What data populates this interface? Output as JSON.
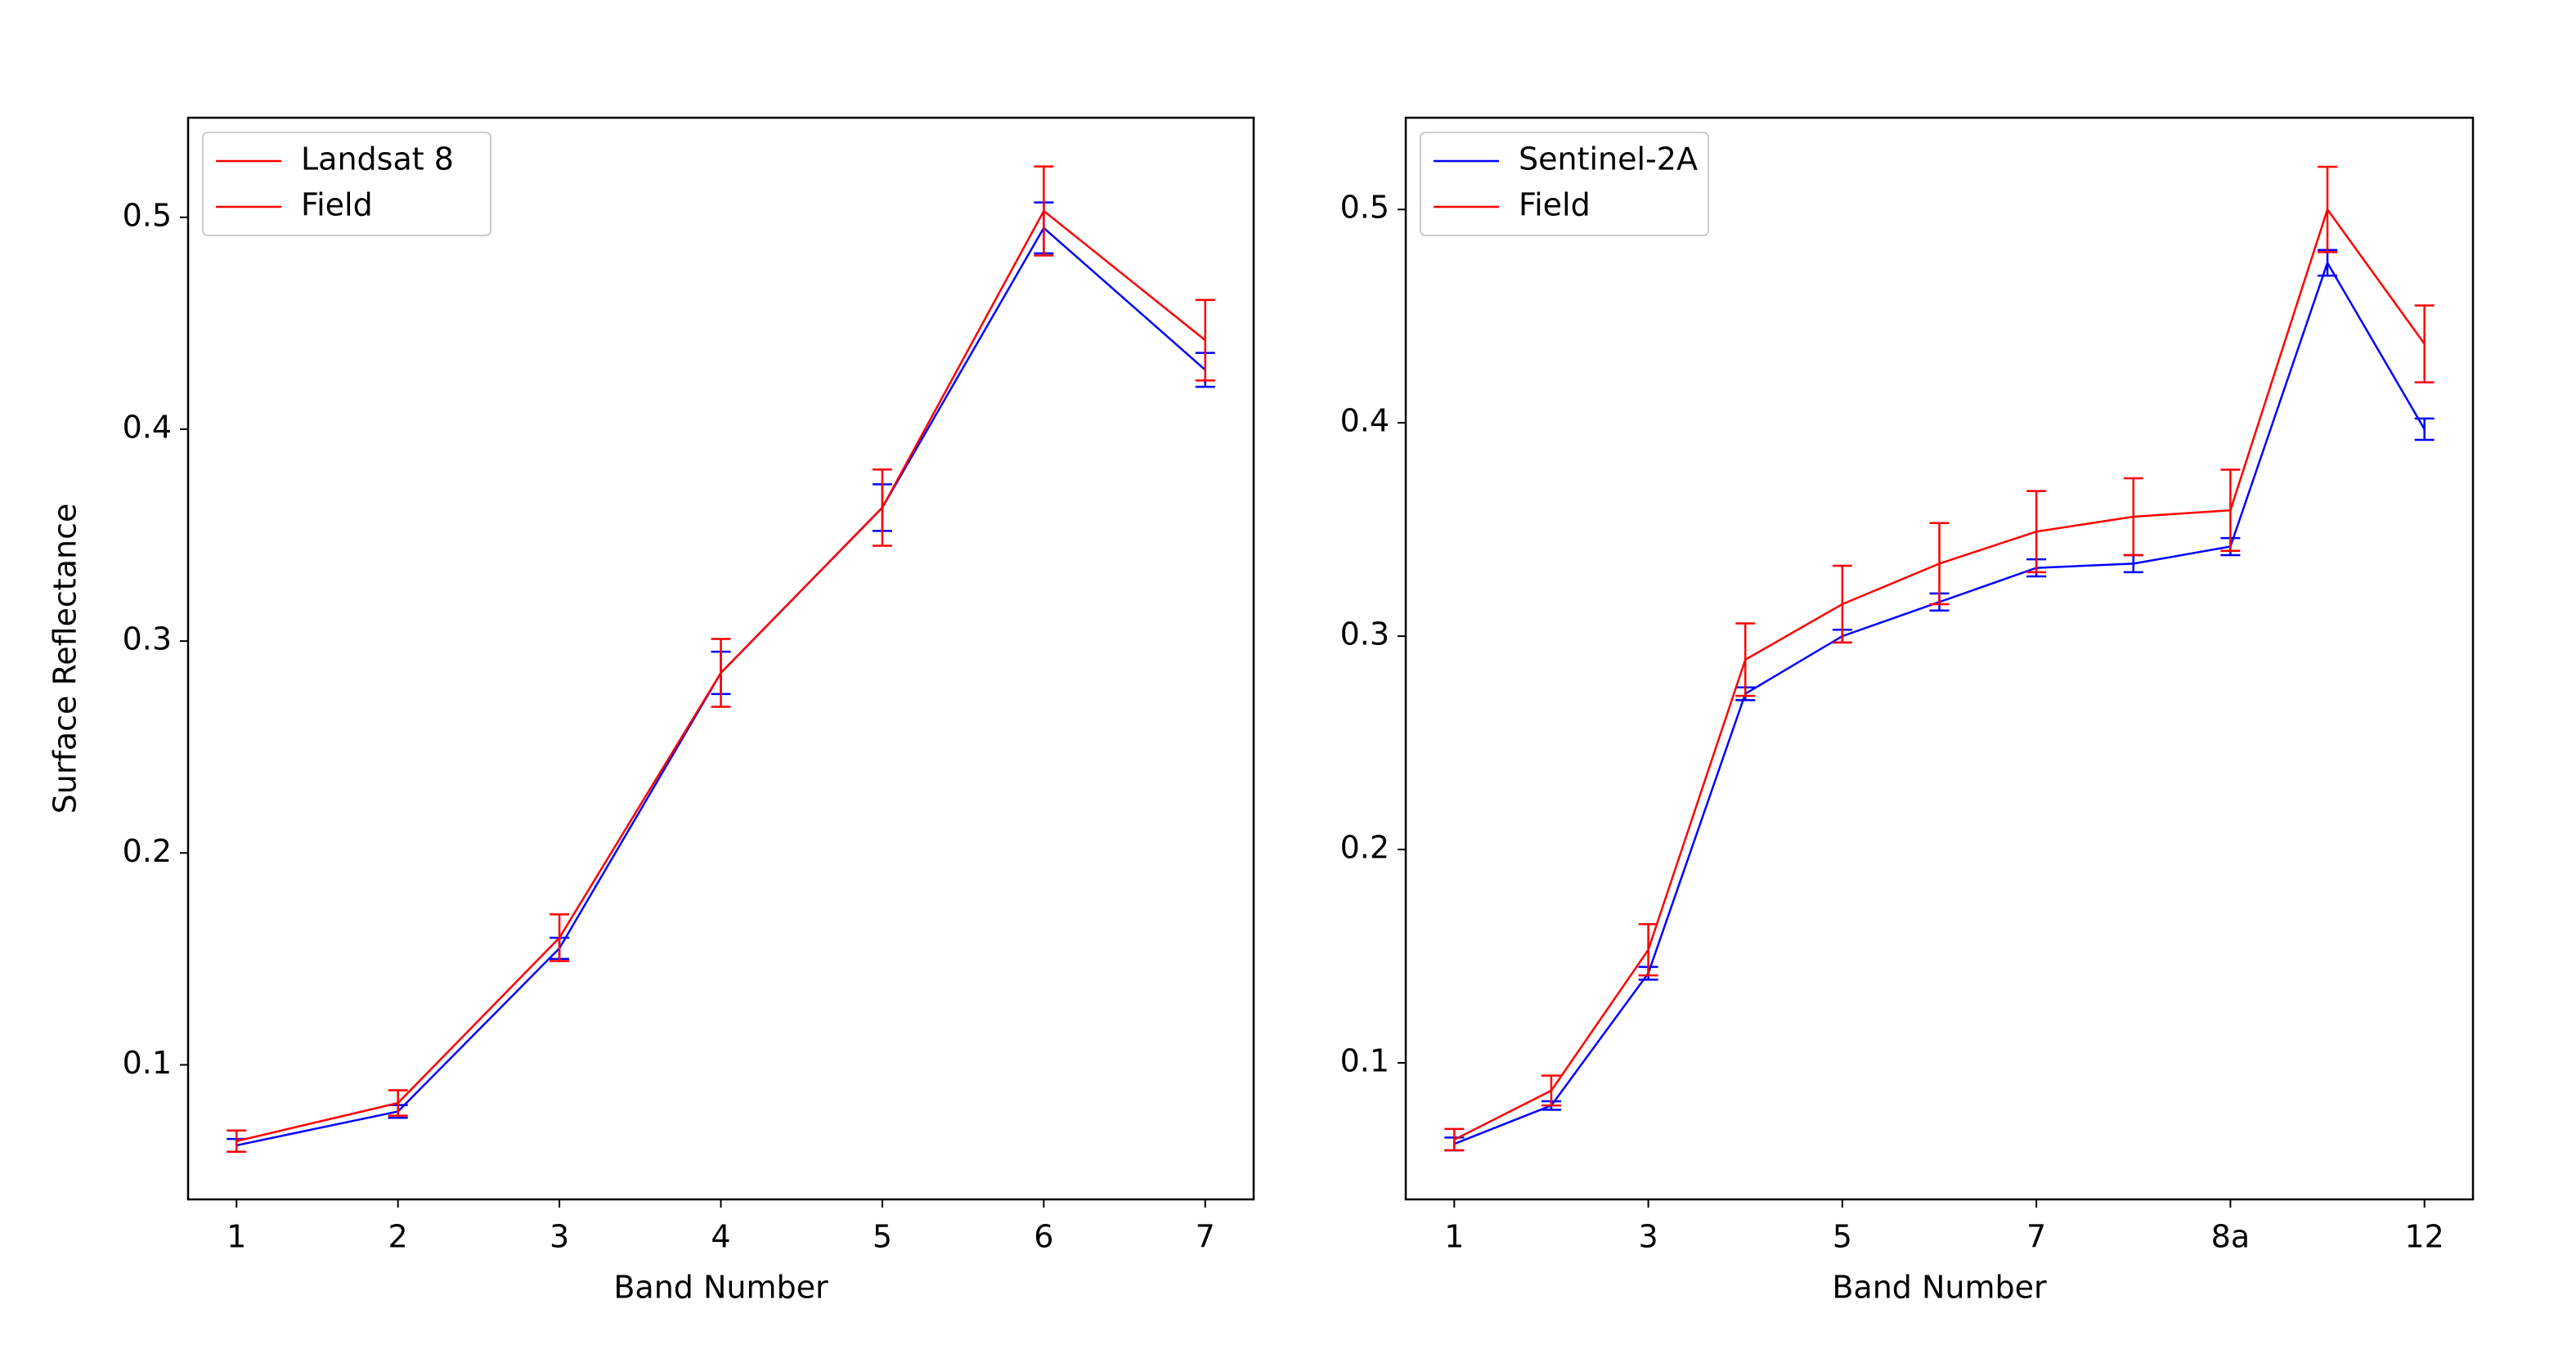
{
  "chart_data": [
    {
      "type": "line",
      "xlabel": "Band Number",
      "ylabel": "Surface Reflectance",
      "x": [
        1,
        2,
        3,
        4,
        5,
        6,
        7
      ],
      "xlim": [
        0.7,
        7.3
      ],
      "xticks": [
        1,
        2,
        3,
        4,
        5,
        6,
        7
      ],
      "ylim": [
        0.0365,
        0.547
      ],
      "yticks": [
        0.1,
        0.2,
        0.3,
        0.4,
        0.5
      ],
      "legend": "upper left",
      "series": [
        {
          "name": "Landsat 8",
          "color": "#0000ff",
          "legend_color": "#ff0000",
          "values": [
            0.062,
            0.078,
            0.155,
            0.285,
            0.363,
            0.495,
            0.428
          ],
          "errors": [
            0.003,
            0.003,
            0.005,
            0.01,
            0.011,
            0.012,
            0.008
          ]
        },
        {
          "name": "Field",
          "color": "#ff0000",
          "values": [
            0.064,
            0.082,
            0.16,
            0.285,
            0.363,
            0.503,
            0.442
          ],
          "errors": [
            0.005,
            0.006,
            0.011,
            0.016,
            0.018,
            0.021,
            0.019
          ]
        }
      ]
    },
    {
      "type": "line",
      "xlabel": "Band Number",
      "categories": [
        "1",
        null,
        "3",
        null,
        "5",
        null,
        "7",
        null,
        "8a",
        null,
        "12"
      ],
      "ylim": [
        0.036,
        0.543
      ],
      "yticks": [
        0.1,
        0.2,
        0.3,
        0.4,
        0.5
      ],
      "legend": "upper left",
      "series": [
        {
          "name": "Sentinel-2A",
          "color": "#0000ff",
          "values": [
            0.062,
            0.08,
            0.142,
            0.273,
            0.3,
            0.316,
            0.332,
            0.334,
            0.342,
            0.475,
            0.397
          ],
          "errors": [
            0.003,
            0.002,
            0.003,
            0.003,
            0.003,
            0.004,
            0.004,
            0.004,
            0.004,
            0.006,
            0.005
          ]
        },
        {
          "name": "Field",
          "color": "#ff0000",
          "values": [
            0.064,
            0.087,
            0.153,
            0.289,
            0.315,
            0.334,
            0.349,
            0.356,
            0.359,
            0.5,
            0.437
          ],
          "errors": [
            0.005,
            0.007,
            0.012,
            0.017,
            0.018,
            0.019,
            0.019,
            0.018,
            0.019,
            0.02,
            0.018
          ]
        }
      ]
    }
  ]
}
